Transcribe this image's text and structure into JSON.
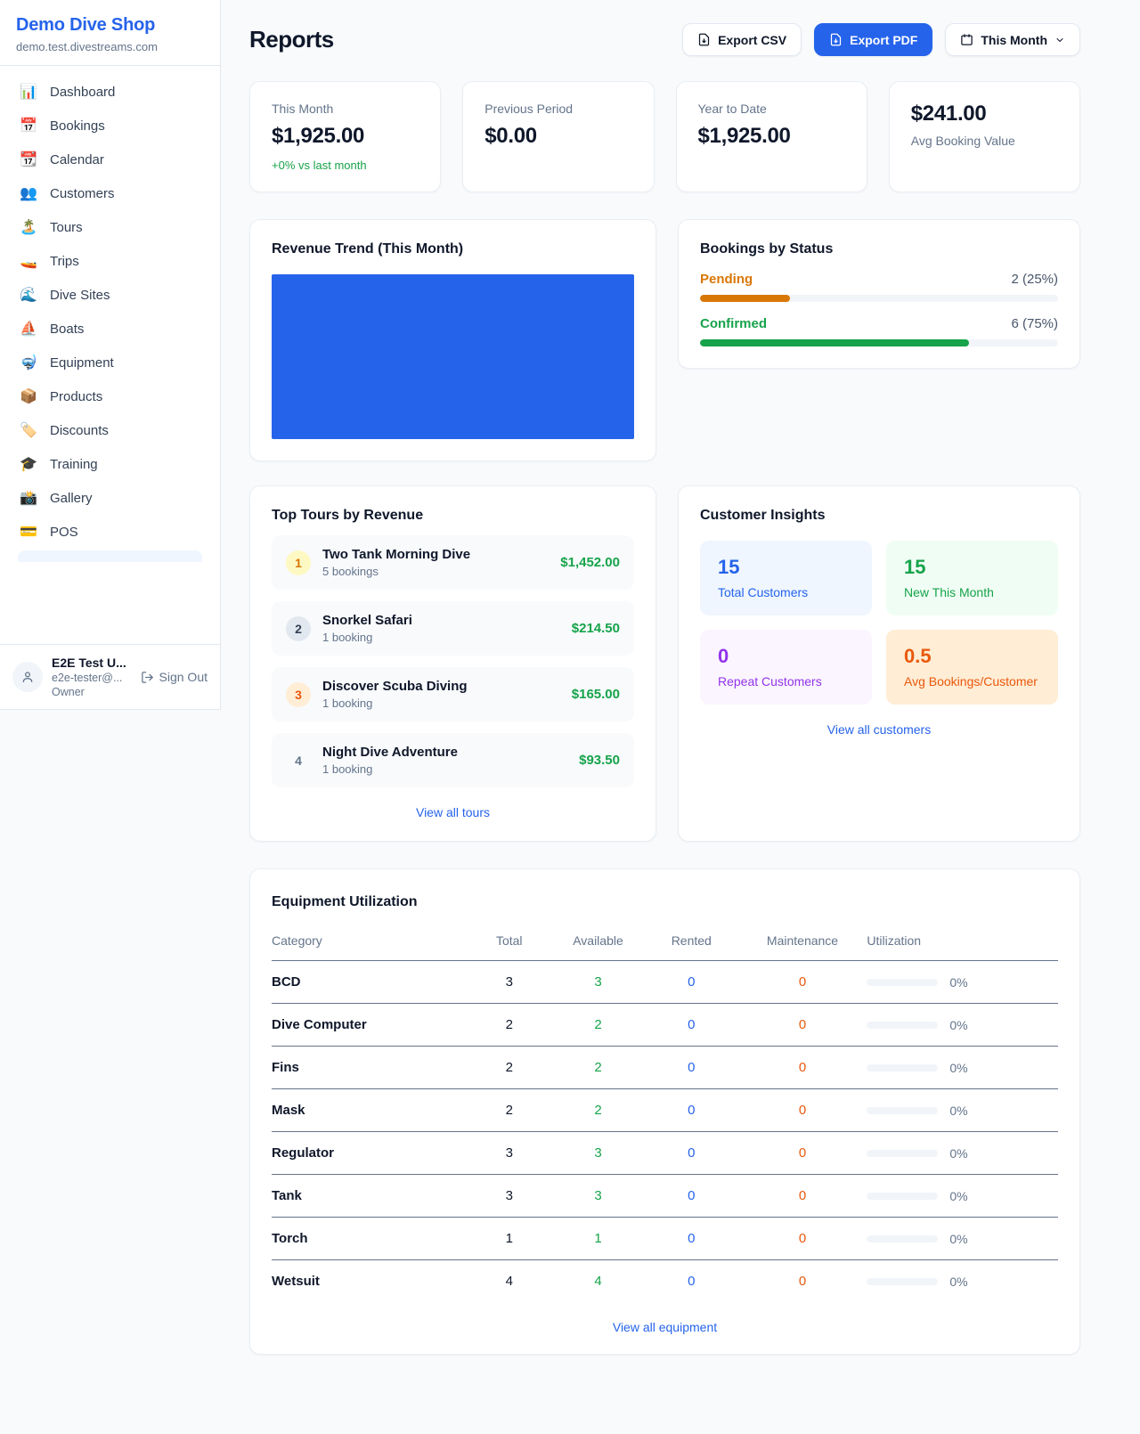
{
  "sidebar": {
    "brand": {
      "name": "Demo Dive Shop",
      "domain": "demo.test.divestreams.com"
    },
    "items": [
      {
        "icon": "📊",
        "label": "Dashboard"
      },
      {
        "icon": "📅",
        "label": "Bookings"
      },
      {
        "icon": "📆",
        "label": "Calendar"
      },
      {
        "icon": "👥",
        "label": "Customers"
      },
      {
        "icon": "🏝️",
        "label": "Tours"
      },
      {
        "icon": "🚤",
        "label": "Trips"
      },
      {
        "icon": "🌊",
        "label": "Dive Sites"
      },
      {
        "icon": "⛵",
        "label": "Boats"
      },
      {
        "icon": "🤿",
        "label": "Equipment"
      },
      {
        "icon": "📦",
        "label": "Products"
      },
      {
        "icon": "🏷️",
        "label": "Discounts"
      },
      {
        "icon": "🎓",
        "label": "Training"
      },
      {
        "icon": "📸",
        "label": "Gallery"
      },
      {
        "icon": "💳",
        "label": "POS"
      }
    ],
    "user": {
      "name": "E2E Test U...",
      "email": "e2e-tester@...",
      "role": "Owner",
      "sign_out": "Sign Out"
    }
  },
  "header": {
    "title": "Reports",
    "export_csv": "Export CSV",
    "export_pdf": "Export PDF",
    "period": "This Month"
  },
  "stats": [
    {
      "label": "This Month",
      "value": "$1,925.00",
      "delta": "+0% vs last month"
    },
    {
      "label": "Previous Period",
      "value": "$0.00"
    },
    {
      "label": "Year to Date",
      "value": "$1,925.00"
    },
    {
      "label": "Avg Booking Value",
      "value": "$241.00"
    }
  ],
  "revenue_trend": {
    "title": "Revenue Trend (This Month)",
    "bar_color": "#2563eb",
    "fill_pct": 100
  },
  "bookings_status": {
    "title": "Bookings by Status",
    "rows": [
      {
        "label": "Pending",
        "count": "2 (25%)",
        "pct": 25,
        "color": "#d97706"
      },
      {
        "label": "Confirmed",
        "count": "6 (75%)",
        "pct": 75,
        "color": "#16a34a"
      }
    ]
  },
  "top_tours": {
    "title": "Top Tours by Revenue",
    "rows": [
      {
        "rank": "1",
        "name": "Two Tank Morning Dive",
        "bookings": "5 bookings",
        "amount": "$1,452.00"
      },
      {
        "rank": "2",
        "name": "Snorkel Safari",
        "bookings": "1 booking",
        "amount": "$214.50"
      },
      {
        "rank": "3",
        "name": "Discover Scuba Diving",
        "bookings": "1 booking",
        "amount": "$165.00"
      },
      {
        "rank": "4",
        "name": "Night Dive Adventure",
        "bookings": "1 booking",
        "amount": "$93.50"
      }
    ],
    "view_all": "View all tours"
  },
  "customer_insights": {
    "title": "Customer Insights",
    "tiles": [
      {
        "value": "15",
        "label": "Total Customers"
      },
      {
        "value": "15",
        "label": "New This Month"
      },
      {
        "value": "0",
        "label": "Repeat Customers"
      },
      {
        "value": "0.5",
        "label": "Avg Bookings/Customer"
      }
    ],
    "view_all": "View all customers"
  },
  "equipment": {
    "title": "Equipment Utilization",
    "columns": [
      "Category",
      "Total",
      "Available",
      "Rented",
      "Maintenance",
      "Utilization"
    ],
    "rows": [
      {
        "category": "BCD",
        "total": "3",
        "available": "3",
        "rented": "0",
        "maintenance": "0",
        "utilization": "0%",
        "pct": 0
      },
      {
        "category": "Dive Computer",
        "total": "2",
        "available": "2",
        "rented": "0",
        "maintenance": "0",
        "utilization": "0%",
        "pct": 0
      },
      {
        "category": "Fins",
        "total": "2",
        "available": "2",
        "rented": "0",
        "maintenance": "0",
        "utilization": "0%",
        "pct": 0
      },
      {
        "category": "Mask",
        "total": "2",
        "available": "2",
        "rented": "0",
        "maintenance": "0",
        "utilization": "0%",
        "pct": 0
      },
      {
        "category": "Regulator",
        "total": "3",
        "available": "3",
        "rented": "0",
        "maintenance": "0",
        "utilization": "0%",
        "pct": 0
      },
      {
        "category": "Tank",
        "total": "3",
        "available": "3",
        "rented": "0",
        "maintenance": "0",
        "utilization": "0%",
        "pct": 0
      },
      {
        "category": "Torch",
        "total": "1",
        "available": "1",
        "rented": "0",
        "maintenance": "0",
        "utilization": "0%",
        "pct": 0
      },
      {
        "category": "Wetsuit",
        "total": "4",
        "available": "4",
        "rented": "0",
        "maintenance": "0",
        "utilization": "0%",
        "pct": 0
      }
    ],
    "view_all": "View all equipment"
  }
}
